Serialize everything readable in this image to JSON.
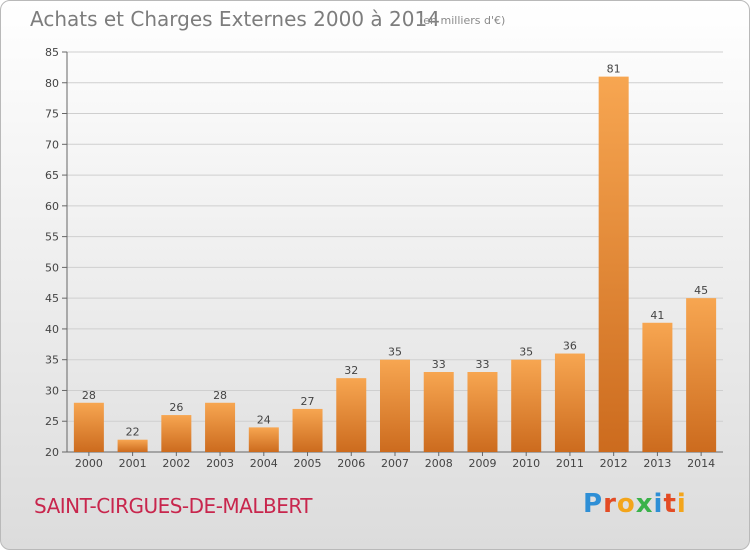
{
  "title": "Achats et Charges Externes 2000 à 2014",
  "subtitle": "(en milliers d'€)",
  "place": "SAINT-CIRGUES-DE-MALBERT",
  "brand": {
    "letters": [
      "P",
      "r",
      "o",
      "x",
      "i",
      "t",
      "i"
    ],
    "colors": [
      "#2e8fd6",
      "#e34b24",
      "#f3a51b",
      "#3ab24a",
      "#2e8fd6",
      "#e34b24",
      "#f3a51b"
    ]
  },
  "colors": {
    "bar_top": "#f7a651",
    "bar_bottom": "#cc6b1e",
    "grid": "#cfcfcf"
  },
  "chart_data": {
    "type": "bar",
    "categories": [
      "2000",
      "2001",
      "2002",
      "2003",
      "2004",
      "2005",
      "2006",
      "2007",
      "2008",
      "2009",
      "2010",
      "2011",
      "2012",
      "2013",
      "2014"
    ],
    "values": [
      28,
      22,
      26,
      28,
      24,
      27,
      32,
      35,
      33,
      33,
      35,
      36,
      81,
      41,
      45
    ],
    "ylim": [
      20,
      85
    ],
    "yticks": [
      20,
      25,
      30,
      35,
      40,
      45,
      50,
      55,
      60,
      65,
      70,
      75,
      80,
      85
    ],
    "grid": true
  }
}
